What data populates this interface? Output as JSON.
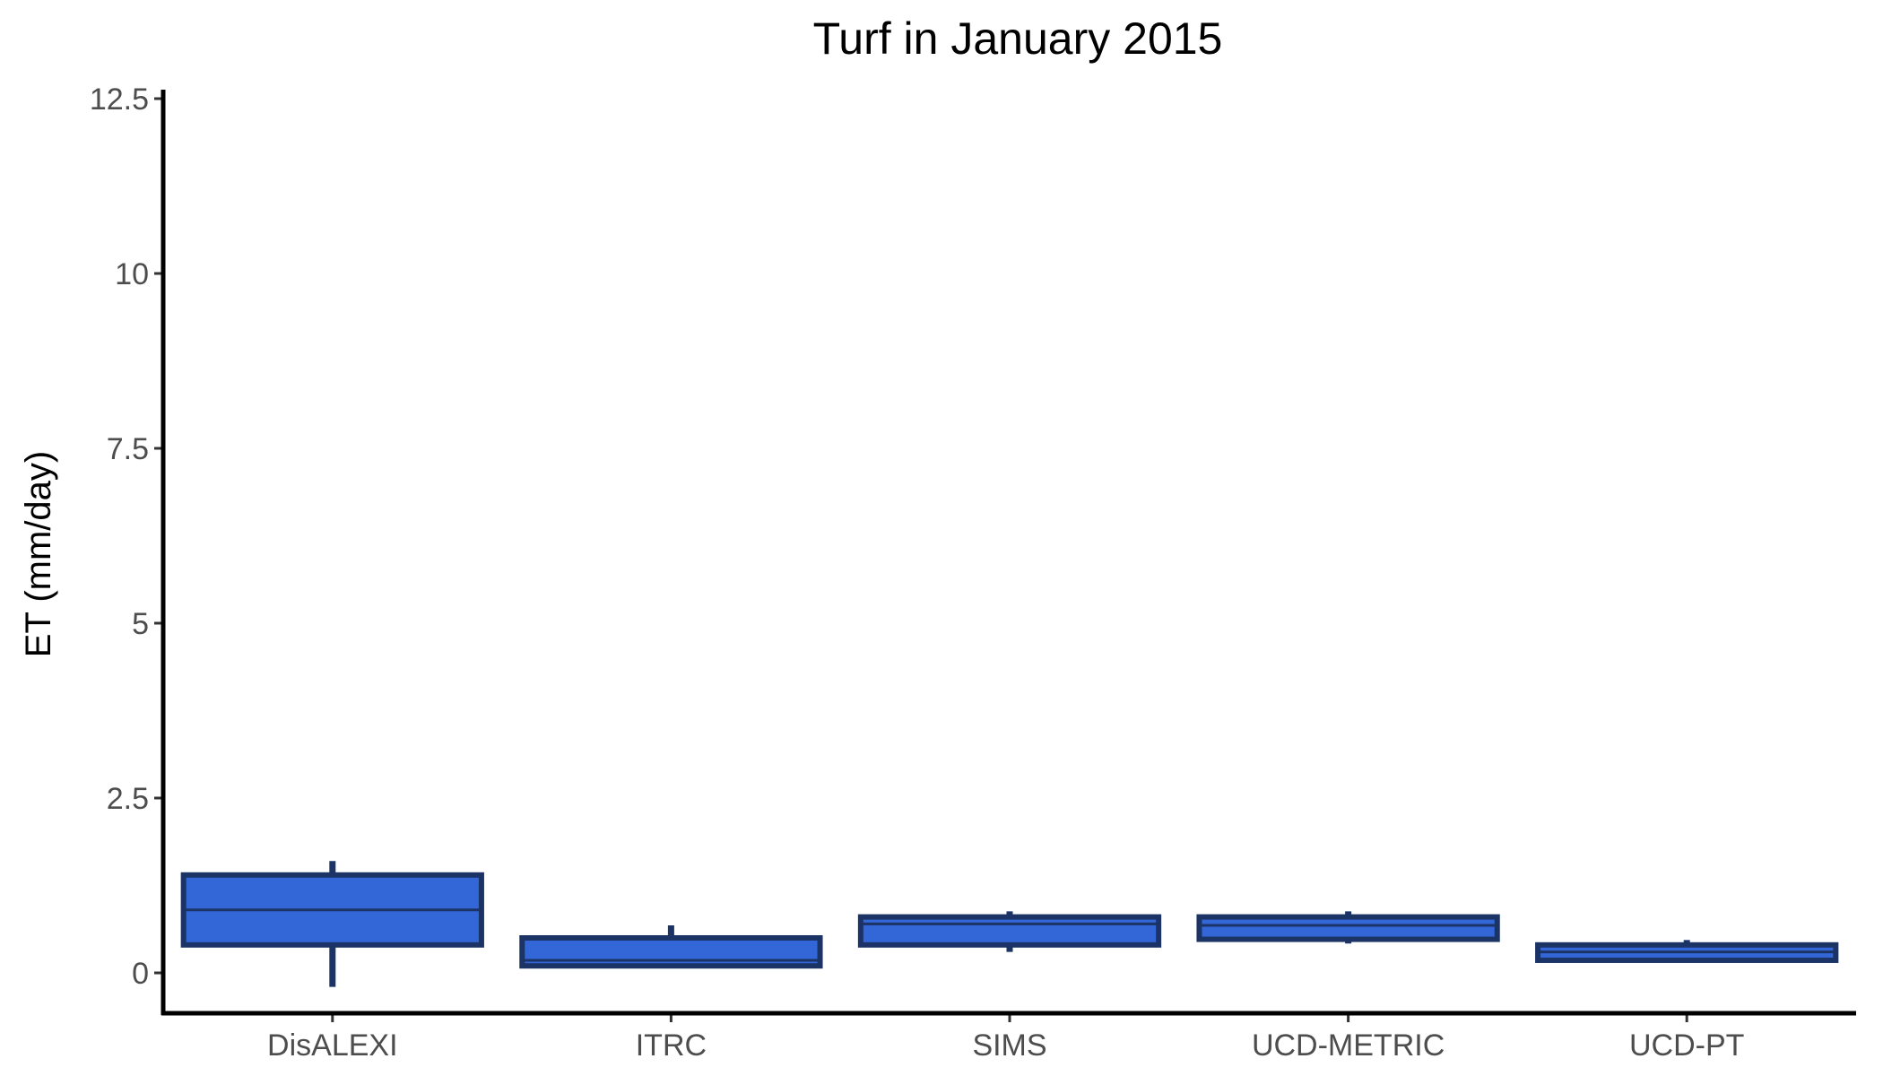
{
  "chart_data": {
    "type": "box",
    "title": "Turf in January 2015",
    "xlabel": "",
    "ylabel": "ET (mm/day)",
    "ylim": [
      -0.6,
      12.6
    ],
    "yticks": [
      0,
      2.5,
      5,
      7.5,
      10,
      12.5
    ],
    "ytick_labels": [
      "0",
      "2.5",
      "5",
      "7.5",
      "10",
      "12.5"
    ],
    "categories": [
      "DisALEXI",
      "ITRC",
      "SIMS",
      "UCD-METRIC",
      "UCD-PT"
    ],
    "boxes": [
      {
        "category": "DisALEXI",
        "min": -0.2,
        "q1": 0.4,
        "median": 0.9,
        "q3": 1.4,
        "max": 1.6
      },
      {
        "category": "ITRC",
        "min": 0.1,
        "q1": 0.1,
        "median": 0.18,
        "q3": 0.5,
        "max": 0.68
      },
      {
        "category": "SIMS",
        "min": 0.3,
        "q1": 0.4,
        "median": 0.7,
        "q3": 0.8,
        "max": 0.88
      },
      {
        "category": "UCD-METRIC",
        "min": 0.42,
        "q1": 0.48,
        "median": 0.68,
        "q3": 0.8,
        "max": 0.88
      },
      {
        "category": "UCD-PT",
        "min": 0.18,
        "q1": 0.18,
        "median": 0.3,
        "q3": 0.4,
        "max": 0.47
      }
    ],
    "grid": false,
    "legend": "none",
    "colors": {
      "fill": "#3366d6",
      "stroke": "#1c3366",
      "axis": "#000000"
    }
  }
}
